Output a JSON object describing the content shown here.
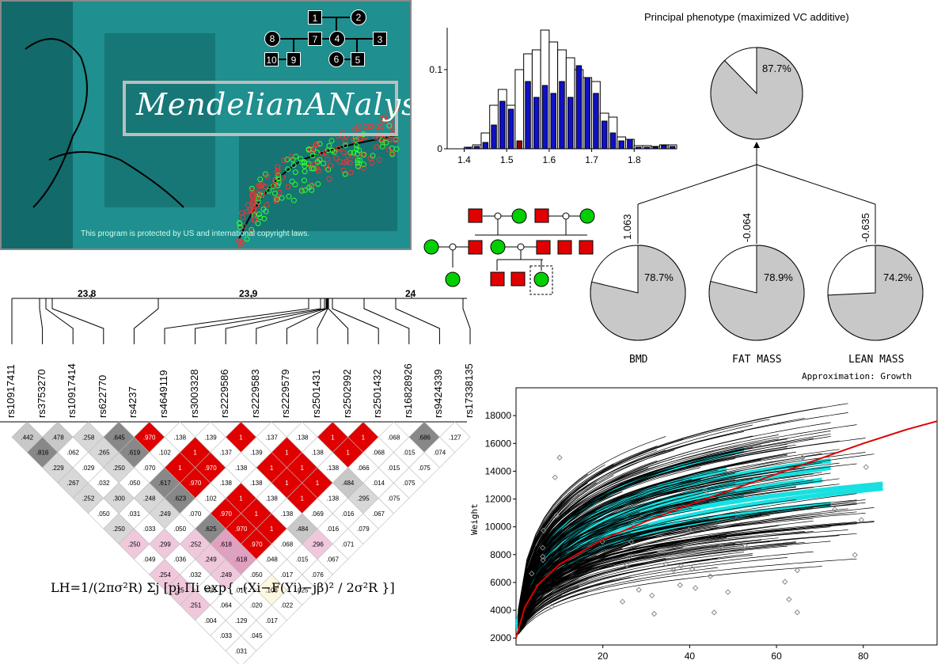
{
  "splash": {
    "logo_text": "MendelianANalysis",
    "copyright": "This program is protected by US and international copyright laws.",
    "pedigree_nodes": [
      "1",
      "2",
      "3",
      "4",
      "5",
      "6",
      "7",
      "8",
      "9",
      "10"
    ]
  },
  "histogram": {
    "y_ticks": [
      "0.1",
      "0"
    ],
    "x_ticks": [
      "1.4",
      "1.5",
      "1.6",
      "1.7",
      "1.8"
    ],
    "chart_data": {
      "type": "bar",
      "x": [
        1.4,
        1.42,
        1.44,
        1.46,
        1.48,
        1.5,
        1.52,
        1.54,
        1.56,
        1.58,
        1.6,
        1.62,
        1.64,
        1.66,
        1.68,
        1.7,
        1.72,
        1.74,
        1.76,
        1.78,
        1.8,
        1.82,
        1.84,
        1.86,
        1.88
      ],
      "series": [
        {
          "values": [
            0.002,
            0.005,
            0.02,
            0.055,
            0.075,
            0.055,
            0.1,
            0.12,
            0.125,
            0.15,
            0.135,
            0.125,
            0.115,
            0.1,
            0.09,
            0.085,
            0.045,
            0.04,
            0.015,
            0.012,
            0.004,
            0.004,
            0.003,
            0.005,
            0.005
          ]
        },
        {
          "values": [
            0.002,
            0.003,
            0.008,
            0.03,
            0.06,
            0.05,
            0.01,
            0.085,
            0.065,
            0.08,
            0.07,
            0.085,
            0.065,
            0.105,
            0.09,
            0.07,
            0.035,
            0.02,
            0.01,
            0.012,
            0.002,
            0.002,
            0.002,
            0.004,
            0.003
          ]
        }
      ],
      "ylim": [
        0,
        0.15
      ]
    }
  },
  "phenotype": {
    "title": "Principal phenotype (maximized VC additive)",
    "top_pct": "87.7%",
    "loadings": [
      "1.063",
      "-0.064",
      "-0.635"
    ],
    "pies": [
      {
        "pct": "78.7%",
        "label": "BMD",
        "value": 78.7
      },
      {
        "pct": "78.9%",
        "label": "FAT MASS",
        "value": 78.9
      },
      {
        "pct": "74.2%",
        "label": "LEAN MASS",
        "value": 74.2
      }
    ],
    "top_value": 87.7
  },
  "ld": {
    "positions": [
      "23.8",
      "23.9",
      "24"
    ],
    "snps": [
      "rs10917411",
      "rs3753270",
      "rs10917414",
      "rs622770",
      "rs4237",
      "rs4649119",
      "rs3003328",
      "rs2229586",
      "rs2229583",
      "rs2229579",
      "rs2501431",
      "rs2502992",
      "rs2501432",
      "rs16828926",
      "rs9424339",
      "rs17338135"
    ],
    "row1": [
      ".442",
      ".478",
      ".258",
      ".645",
      ".970",
      ".138",
      ".139",
      "1",
      ".137",
      ".138",
      "1",
      "1",
      ".068",
      ".686",
      ".127"
    ],
    "row2": [
      ".816",
      ".062",
      ".265",
      ".619",
      ".102",
      "1",
      ".137",
      ".139",
      "1",
      ".138",
      "1",
      ".068",
      ".015",
      ".074"
    ],
    "row3": [
      ".229",
      ".029",
      ".250",
      ".070",
      "1",
      ".970",
      ".138",
      "1",
      "1",
      ".138",
      ".066",
      ".015",
      ".075"
    ],
    "row4": [
      ".267",
      ".032",
      ".050",
      ".617",
      ".970",
      ".138",
      ".138",
      "1",
      "1",
      ".484",
      ".014",
      ".075"
    ],
    "row5": [
      ".252",
      ".300",
      ".248",
      ".623",
      ".102",
      "1",
      ".138",
      "1",
      ".138",
      ".295",
      ".075"
    ],
    "row6": [
      ".050",
      ".031",
      ".249",
      ".070",
      ".970",
      "1",
      ".138",
      ".069",
      ".016",
      ".067"
    ],
    "row7": [
      ".250",
      ".033",
      ".050",
      ".625",
      ".970",
      "1",
      ".484",
      ".016",
      ".079"
    ],
    "row8": [
      ".250",
      ".299",
      ".252",
      ".618",
      ".970",
      ".068",
      ".296",
      ".071"
    ],
    "row9": [
      ".049",
      ".036",
      ".249",
      ".618",
      ".048",
      ".015",
      ".067"
    ],
    "row10": [
      ".254",
      ".032",
      ".249",
      ".050",
      ".017",
      ".076"
    ],
    "row11": [
      ".25",
      ".025",
      ".017",
      ".106",
      ".025"
    ],
    "row12": [
      ".251",
      ".064",
      ".020",
      ".022"
    ],
    "row13": [
      ".004",
      ".129",
      ".017"
    ],
    "row14": [
      ".033",
      ".045"
    ],
    "row15": [
      ".031"
    ]
  },
  "formula": "LH=1/(2πσ²R) Σj [pj Πi exp{ -(Xi−F(Yi)−jβ)² / 2σ²R }]",
  "growth": {
    "title": "Approximation: Growth",
    "ylabel": "Weight",
    "y_ticks": [
      "18000",
      "16000",
      "14000",
      "12000",
      "10000",
      "8000",
      "6000",
      "4000",
      "2000"
    ],
    "x_ticks": [
      "20",
      "40",
      "60",
      "80"
    ],
    "chart_data": {
      "type": "line",
      "xlim": [
        0,
        97
      ],
      "ylim": [
        1500,
        20000
      ],
      "mean_curve": {
        "x": [
          0,
          2,
          5,
          10,
          20,
          30,
          40,
          50,
          60,
          70,
          80,
          90,
          97
        ],
        "y": [
          2000,
          4200,
          5800,
          7300,
          9100,
          10400,
          11600,
          12700,
          13800,
          14900,
          16000,
          17000,
          17600
        ]
      }
    }
  },
  "colors": {
    "red": "#e00000",
    "green": "#00d000",
    "blue": "#1010c8",
    "darkred": "#8b0000",
    "cyan": "#19e0e0"
  }
}
